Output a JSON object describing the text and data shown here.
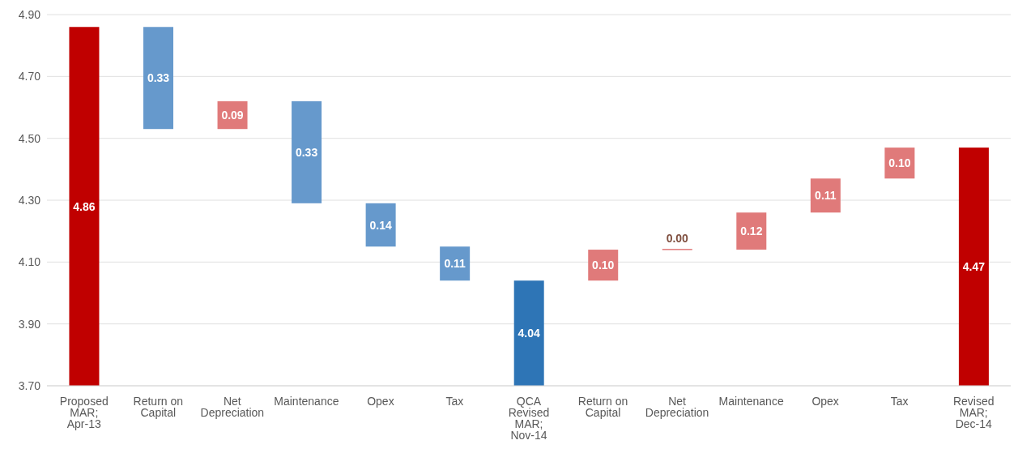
{
  "chart_data": {
    "type": "bar",
    "categories": [
      "Proposed MAR; Apr-13",
      "Return on Capital",
      "Net Depreciation",
      "Maintenance",
      "Opex",
      "Tax",
      "QCA Revised MAR; Nov-14",
      "Return on Capital",
      "Net Depreciation",
      "Maintenance",
      "Opex",
      "Tax",
      "Revised MAR; Dec-14"
    ],
    "values": [
      4.86,
      0.33,
      0.09,
      0.33,
      0.14,
      0.11,
      4.04,
      0.1,
      0.0,
      0.12,
      0.11,
      0.1,
      4.47
    ],
    "base": [
      0,
      4.53,
      4.53,
      4.29,
      4.15,
      4.04,
      0,
      4.04,
      4.14,
      4.14,
      4.26,
      4.37,
      0
    ],
    "colors": [
      "#c00000",
      "#6699cc",
      "#e07a7a",
      "#6699cc",
      "#6699cc",
      "#6699cc",
      "#2e75b6",
      "#e07a7a",
      "#e07a7a",
      "#e07a7a",
      "#e07a7a",
      "#e07a7a",
      "#c00000"
    ],
    "value_labels": [
      "4.86",
      "0.33",
      "0.09",
      "0.33",
      "0.14",
      "0.11",
      "4.04",
      "0.10",
      "0.00",
      "0.12",
      "0.11",
      "0.10",
      "4.47"
    ],
    "ylim": [
      3.7,
      4.9
    ],
    "yticks": [
      {
        "value": 3.7,
        "label": "3.70"
      },
      {
        "value": 3.9,
        "label": "3.90"
      },
      {
        "value": 4.1,
        "label": "4.10"
      },
      {
        "value": 4.3,
        "label": "4.30"
      },
      {
        "value": 4.5,
        "label": "4.50"
      },
      {
        "value": 4.7,
        "label": "4.70"
      },
      {
        "value": 4.9,
        "label": "4.90"
      }
    ],
    "grid": "y",
    "legend": false
  }
}
